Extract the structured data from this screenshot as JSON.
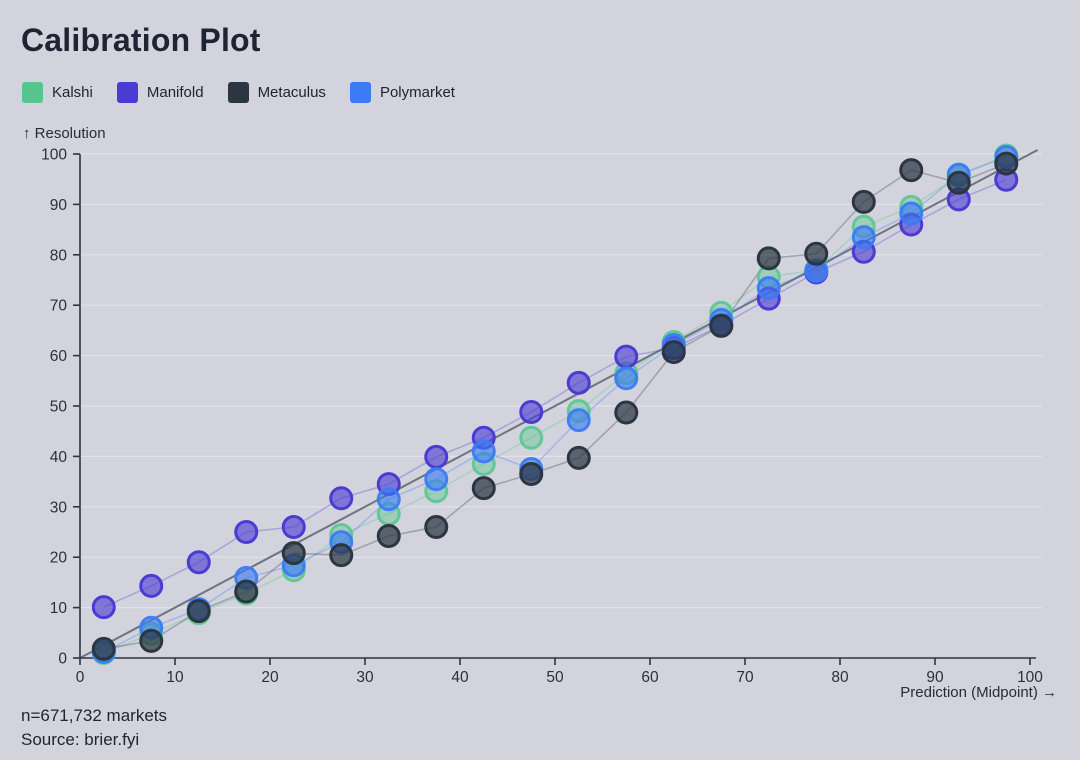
{
  "title": "Calibration Plot",
  "legend": [
    {
      "label": "Kalshi",
      "color": "#55c68c"
    },
    {
      "label": "Manifold",
      "color": "#4a3cd2"
    },
    {
      "label": "Metaculus",
      "color": "#2b3642"
    },
    {
      "label": "Polymarket",
      "color": "#3b7bf4"
    }
  ],
  "axes": {
    "y_label": "↑ Resolution",
    "x_label": "Prediction (Midpoint) →",
    "x_ticks": [
      0,
      10,
      20,
      30,
      40,
      50,
      60,
      70,
      80,
      90,
      100
    ],
    "y_ticks": [
      0,
      10,
      20,
      30,
      40,
      50,
      60,
      70,
      80,
      90,
      100
    ]
  },
  "footer": {
    "line1": "n=671,732 markets",
    "line2": "Source: brier.fyi"
  },
  "chart_data": {
    "type": "scatter",
    "title": "Calibration Plot",
    "xlabel": "Prediction (Midpoint)",
    "ylabel": "Resolution",
    "xlim": [
      0,
      100
    ],
    "ylim": [
      0,
      100
    ],
    "grid": "horizontal",
    "legend_position": "top-left",
    "diagonal_reference": true,
    "x": [
      2.5,
      7.5,
      12.5,
      17.5,
      22.5,
      27.5,
      32.5,
      37.5,
      42.5,
      47.5,
      52.5,
      57.5,
      62.5,
      67.5,
      72.5,
      77.5,
      82.5,
      87.5,
      92.5,
      97.5
    ],
    "series": [
      {
        "name": "Kalshi",
        "color": "#55c68c",
        "values": [
          1.0,
          4.8,
          8.9,
          12.8,
          17.4,
          24.4,
          28.6,
          33.1,
          38.5,
          43.7,
          49.0,
          56.5,
          62.7,
          68.5,
          75.6,
          77.0,
          85.6,
          89.5,
          95.7,
          99.7
        ]
      },
      {
        "name": "Manifold",
        "color": "#4a3cd2",
        "values": [
          10.1,
          14.3,
          19.0,
          25.0,
          26.0,
          31.7,
          34.5,
          39.9,
          43.7,
          48.8,
          54.6,
          59.8,
          61.5,
          66.0,
          71.3,
          76.5,
          80.6,
          86.0,
          91.0,
          94.9
        ]
      },
      {
        "name": "Metaculus",
        "color": "#2b3642",
        "values": [
          1.8,
          3.4,
          9.3,
          13.2,
          20.8,
          20.4,
          24.2,
          26.0,
          33.7,
          36.5,
          39.7,
          48.7,
          60.7,
          65.9,
          79.3,
          80.2,
          90.5,
          96.8,
          94.3,
          98.1
        ]
      },
      {
        "name": "Polymarket",
        "color": "#3b7bf4",
        "values": [
          1.2,
          6.0,
          9.7,
          15.9,
          18.4,
          23.0,
          31.5,
          35.5,
          41.0,
          37.5,
          47.2,
          55.5,
          62.1,
          67.1,
          73.4,
          76.8,
          83.5,
          88.2,
          95.9,
          99.4
        ]
      }
    ]
  },
  "colors": {
    "background": "#d2d3dc",
    "gridline": "#e2e3ea",
    "axis": "#2f3540",
    "diagonal": "#5d6370",
    "text": "#1f2430"
  }
}
